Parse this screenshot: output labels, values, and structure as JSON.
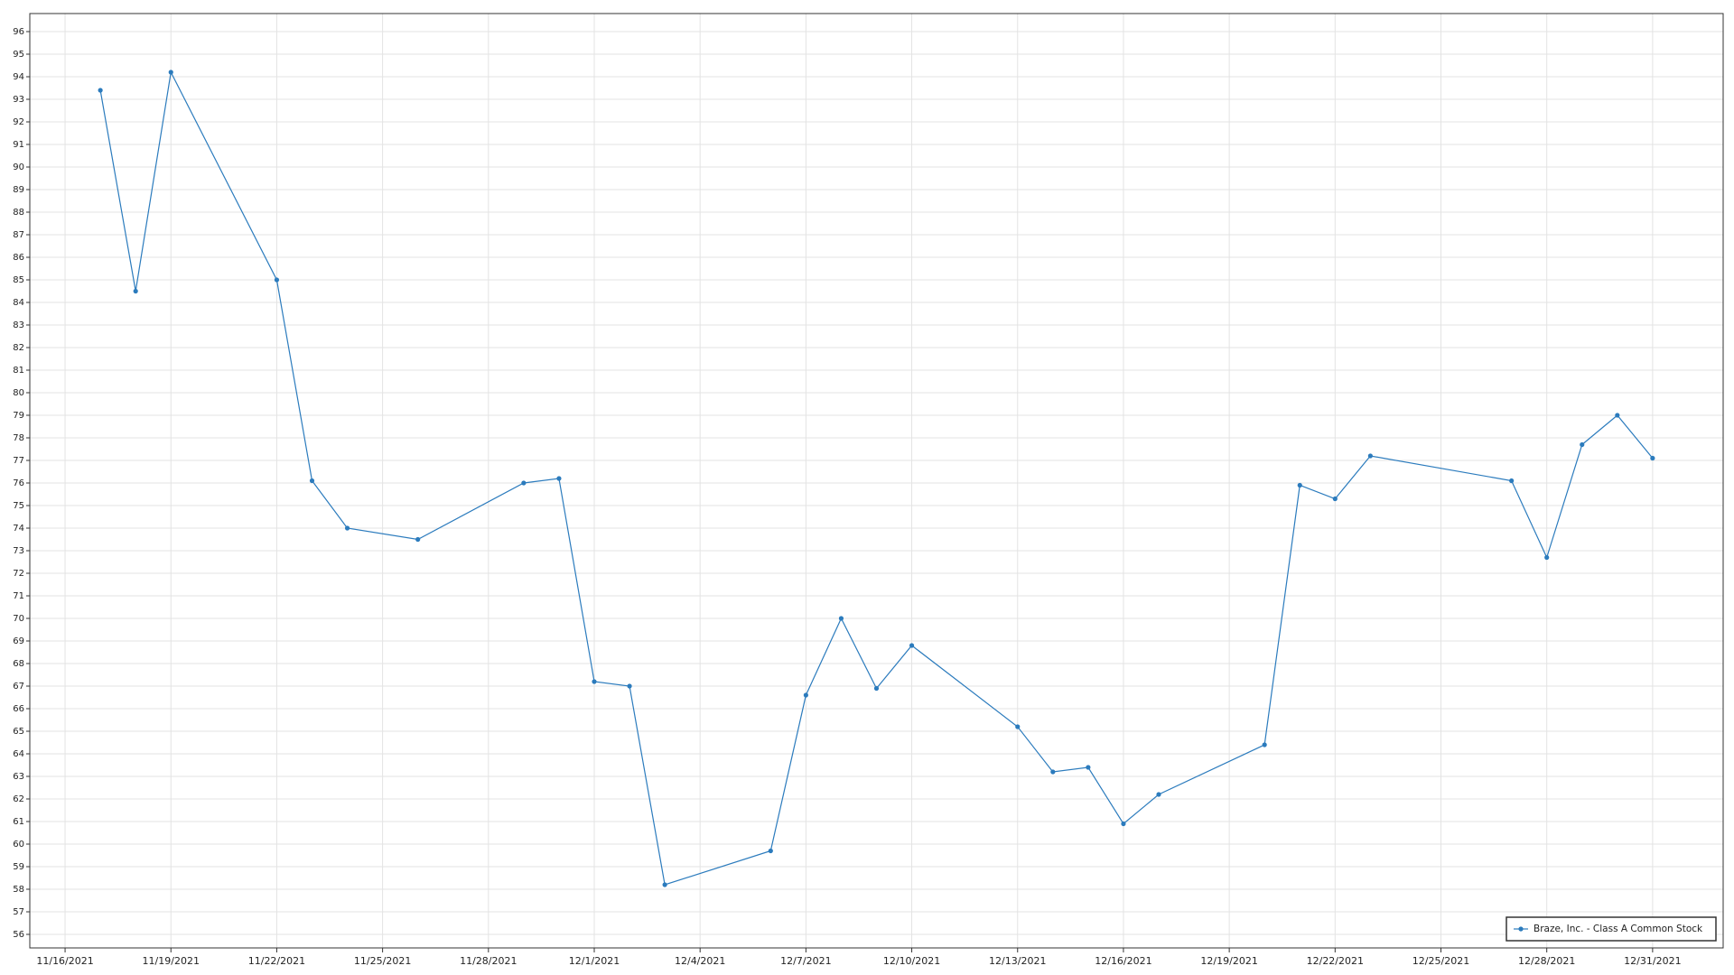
{
  "chart_data": {
    "type": "line",
    "x": [
      "2021-11-17",
      "2021-11-18",
      "2021-11-19",
      "2021-11-22",
      "2021-11-23",
      "2021-11-24",
      "2021-11-26",
      "2021-11-29",
      "2021-11-30",
      "2021-12-01",
      "2021-12-02",
      "2021-12-03",
      "2021-12-06",
      "2021-12-07",
      "2021-12-08",
      "2021-12-09",
      "2021-12-10",
      "2021-12-13",
      "2021-12-14",
      "2021-12-15",
      "2021-12-16",
      "2021-12-17",
      "2021-12-20",
      "2021-12-21",
      "2021-12-22",
      "2021-12-23",
      "2021-12-27",
      "2021-12-28",
      "2021-12-29",
      "2021-12-30",
      "2021-12-31"
    ],
    "series": [
      {
        "name": "Braze, Inc. - Class A Common Stock",
        "color": "#2b7bbd",
        "values": [
          93.4,
          84.5,
          94.2,
          85.0,
          76.1,
          74.0,
          73.5,
          76.0,
          76.2,
          67.2,
          67.0,
          58.2,
          59.7,
          66.6,
          70.0,
          66.9,
          68.8,
          65.2,
          63.2,
          63.4,
          60.9,
          62.2,
          64.4,
          75.9,
          75.3,
          77.2,
          76.1,
          72.7,
          77.7,
          79.0,
          77.1
        ]
      }
    ],
    "xlim": [
      "2021-11-15",
      "2022-01-02"
    ],
    "xticks": [
      {
        "value": "2021-11-16",
        "label": "11/16/2021"
      },
      {
        "value": "2021-11-19",
        "label": "11/19/2021"
      },
      {
        "value": "2021-11-22",
        "label": "11/22/2021"
      },
      {
        "value": "2021-11-25",
        "label": "11/25/2021"
      },
      {
        "value": "2021-11-28",
        "label": "11/28/2021"
      },
      {
        "value": "2021-12-01",
        "label": "12/1/2021"
      },
      {
        "value": "2021-12-04",
        "label": "12/4/2021"
      },
      {
        "value": "2021-12-07",
        "label": "12/7/2021"
      },
      {
        "value": "2021-12-10",
        "label": "12/10/2021"
      },
      {
        "value": "2021-12-13",
        "label": "12/13/2021"
      },
      {
        "value": "2021-12-16",
        "label": "12/16/2021"
      },
      {
        "value": "2021-12-19",
        "label": "12/19/2021"
      },
      {
        "value": "2021-12-22",
        "label": "12/22/2021"
      },
      {
        "value": "2021-12-25",
        "label": "12/25/2021"
      },
      {
        "value": "2021-12-28",
        "label": "12/28/2021"
      },
      {
        "value": "2021-12-31",
        "label": "12/31/2021"
      }
    ],
    "ylim": [
      55.4,
      96.8
    ],
    "yticks": [
      56,
      57,
      58,
      59,
      60,
      61,
      62,
      63,
      64,
      65,
      66,
      67,
      68,
      69,
      70,
      71,
      72,
      73,
      74,
      75,
      76,
      77,
      78,
      79,
      80,
      81,
      82,
      83,
      84,
      85,
      86,
      87,
      88,
      89,
      90,
      91,
      92,
      93,
      94,
      95,
      96
    ],
    "grid": true,
    "legend": "bottom-right"
  }
}
